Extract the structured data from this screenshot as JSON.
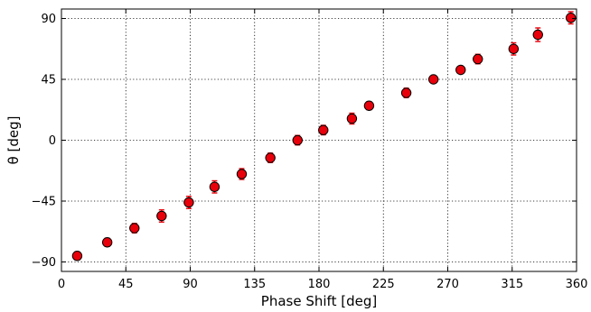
{
  "chart_data": {
    "type": "scatter",
    "title": "",
    "xlabel": "Phase Shift [deg]",
    "ylabel": "θ [deg]",
    "xlim": [
      0,
      360
    ],
    "ylim": [
      -97,
      97
    ],
    "x_ticks": [
      0,
      45,
      90,
      135,
      180,
      225,
      270,
      315,
      360
    ],
    "y_ticks": [
      -90,
      -45,
      0,
      45,
      90
    ],
    "y_tick_labels": [
      "−90",
      "−45",
      "0",
      "45",
      "90"
    ],
    "grid": true,
    "marker_color": "#e8000b",
    "errorbar_color": "#e8000b",
    "series": [
      {
        "x": [
          11,
          32,
          51,
          70,
          89,
          107,
          126,
          146,
          165,
          183,
          203,
          215,
          241,
          260,
          279,
          291,
          316,
          333,
          356
        ],
        "y": [
          -85.5,
          -75.5,
          -65,
          -56,
          -46,
          -34.5,
          -25,
          -13,
          0,
          7.5,
          16,
          25.5,
          35,
          45,
          52,
          60,
          67.5,
          78,
          90.5
        ],
        "err": [
          3,
          3,
          3.5,
          4.5,
          4.5,
          4.5,
          4,
          3.5,
          3.5,
          3.5,
          4,
          3,
          3.5,
          2,
          2.5,
          3.5,
          4.5,
          5,
          4.5
        ]
      }
    ]
  }
}
